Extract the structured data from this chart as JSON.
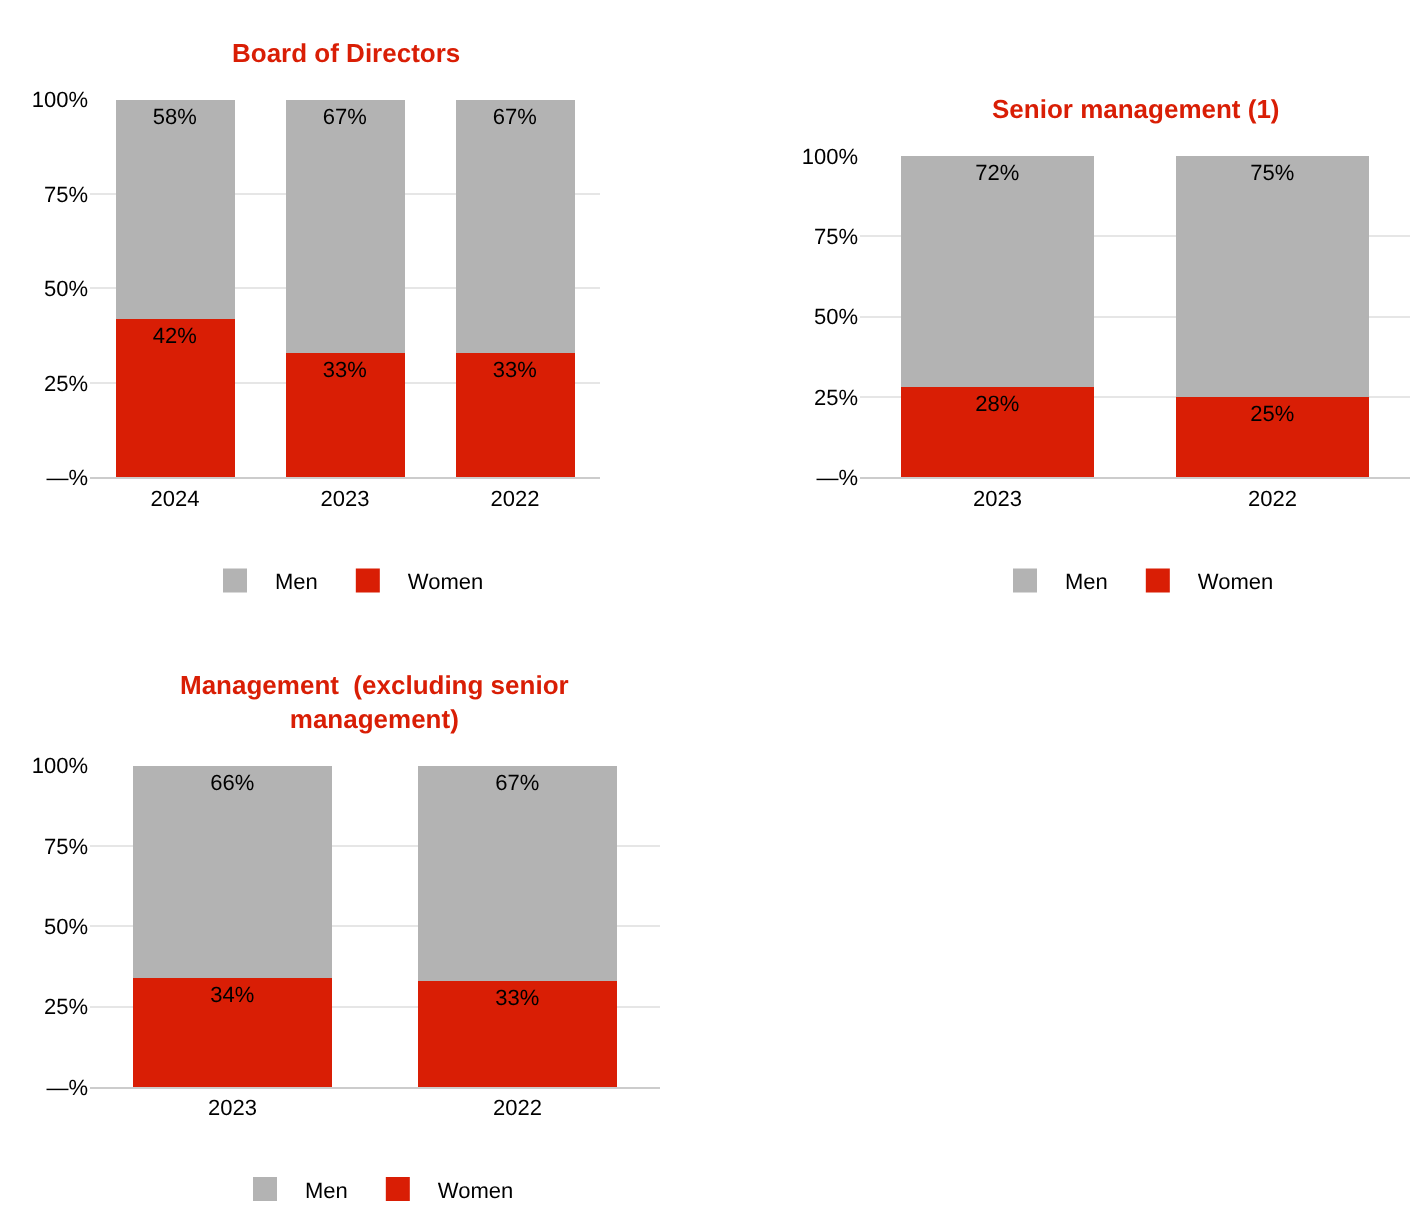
{
  "chart_data": [
    {
      "type": "bar",
      "stacked": true,
      "title": "Board of Directors",
      "categories": [
        "2024",
        "2023",
        "2022"
      ],
      "series": [
        {
          "name": "Women",
          "color": "#d91e05",
          "values": [
            42,
            33,
            33
          ],
          "value_labels": [
            "42%",
            "33%",
            "33%"
          ]
        },
        {
          "name": "Men",
          "color": "#b3b3b3",
          "values": [
            58,
            67,
            67
          ],
          "value_labels": [
            "58%",
            "67%",
            "67%"
          ]
        }
      ],
      "ylim": [
        0,
        100
      ],
      "yticks": [
        {
          "value": 0,
          "label": "—%"
        },
        {
          "value": 25,
          "label": "25%"
        },
        {
          "value": 50,
          "label": "50%"
        },
        {
          "value": 75,
          "label": "75%"
        },
        {
          "value": 100,
          "label": "100%"
        }
      ],
      "grid": "y",
      "legend": "bottom"
    },
    {
      "type": "bar",
      "stacked": true,
      "title": "Senior management (1)",
      "categories": [
        "2023",
        "2022"
      ],
      "series": [
        {
          "name": "Women",
          "color": "#d91e05",
          "values": [
            28,
            25
          ],
          "value_labels": [
            "28%",
            "25%"
          ]
        },
        {
          "name": "Men",
          "color": "#b3b3b3",
          "values": [
            72,
            75
          ],
          "value_labels": [
            "72%",
            "75%"
          ]
        }
      ],
      "ylim": [
        0,
        100
      ],
      "yticks": [
        {
          "value": 0,
          "label": "—%"
        },
        {
          "value": 25,
          "label": "25%"
        },
        {
          "value": 50,
          "label": "50%"
        },
        {
          "value": 75,
          "label": "75%"
        },
        {
          "value": 100,
          "label": "100%"
        }
      ],
      "grid": "y",
      "legend": "bottom"
    },
    {
      "type": "bar",
      "stacked": true,
      "title": "Management  (excluding senior management)",
      "categories": [
        "2023",
        "2022"
      ],
      "series": [
        {
          "name": "Women",
          "color": "#d91e05",
          "values": [
            34,
            33
          ],
          "value_labels": [
            "34%",
            "33%"
          ]
        },
        {
          "name": "Men",
          "color": "#b3b3b3",
          "values": [
            66,
            67
          ],
          "value_labels": [
            "66%",
            "67%"
          ]
        }
      ],
      "ylim": [
        0,
        100
      ],
      "yticks": [
        {
          "value": 0,
          "label": "—%"
        },
        {
          "value": 25,
          "label": "25%"
        },
        {
          "value": 50,
          "label": "50%"
        },
        {
          "value": 75,
          "label": "75%"
        },
        {
          "value": 100,
          "label": "100%"
        }
      ],
      "grid": "y",
      "legend": "bottom"
    }
  ]
}
